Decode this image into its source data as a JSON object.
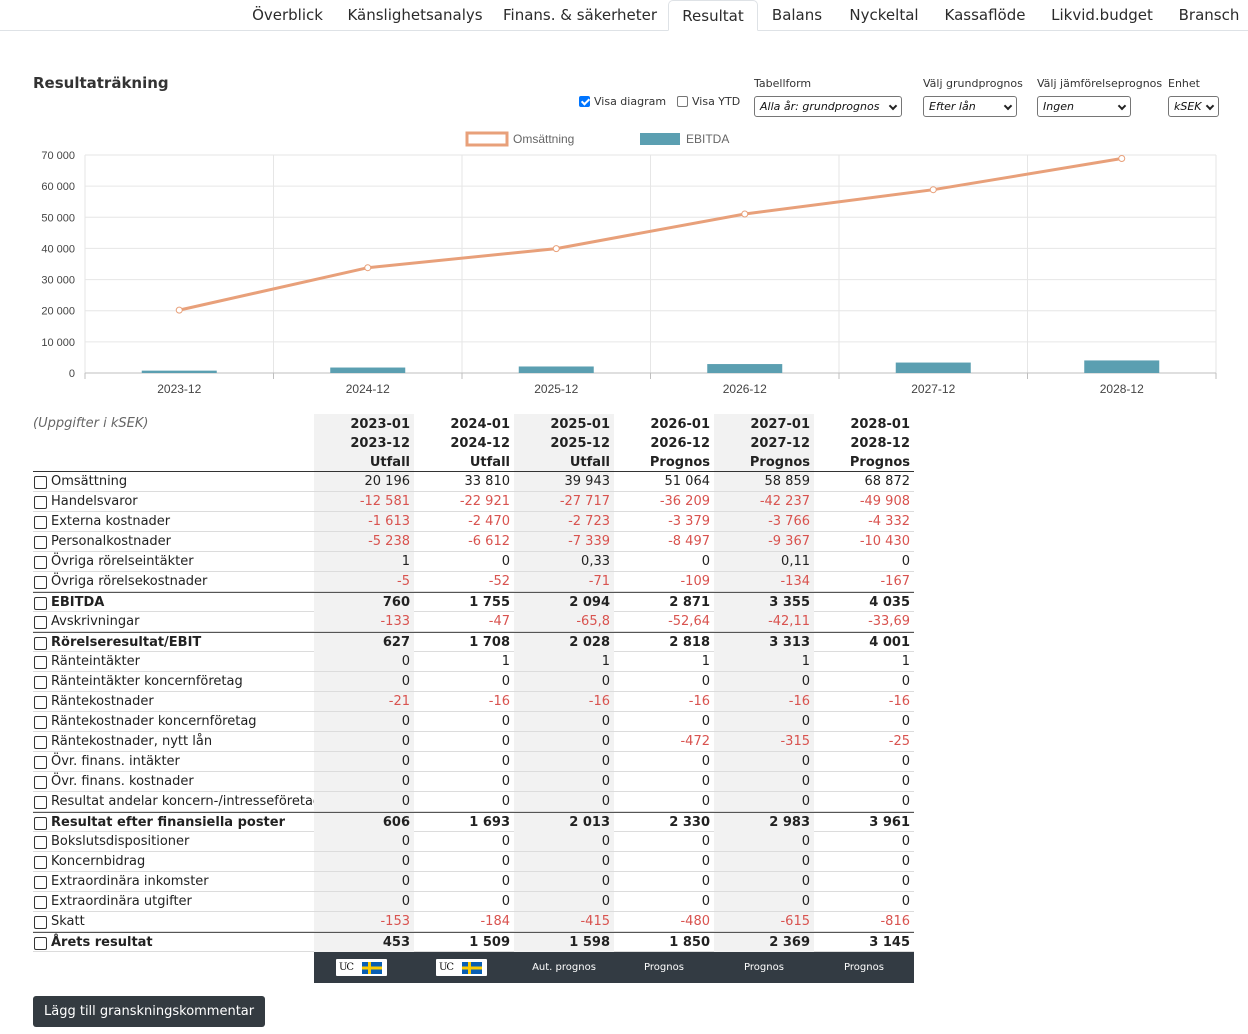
{
  "tabs": [
    {
      "label": "Överblick",
      "active": false
    },
    {
      "label": "Känslighetsanalys",
      "active": false
    },
    {
      "label": "Finans. & säkerheter",
      "active": false
    },
    {
      "label": "Resultat",
      "active": true
    },
    {
      "label": "Balans",
      "active": false
    },
    {
      "label": "Nyckeltal",
      "active": false
    },
    {
      "label": "Kassaflöde",
      "active": false
    },
    {
      "label": "Likvid.budget",
      "active": false
    },
    {
      "label": "Bransch",
      "active": false
    }
  ],
  "page": {
    "title": "Resultaträkning"
  },
  "controls": {
    "show_chart": {
      "label": "Visa diagram",
      "checked": true
    },
    "show_ytd": {
      "label": "Visa YTD",
      "checked": false
    },
    "table_form": {
      "label": "Tabellform",
      "value": "Alla år: grundprognos"
    },
    "base_forecast": {
      "label": "Välj grundprognos",
      "value": "Efter lån"
    },
    "compare_forecast": {
      "label": "Välj jämförelseprognos",
      "value": "Ingen"
    },
    "unit": {
      "label": "Enhet",
      "value": "kSEK"
    }
  },
  "colors": {
    "line": "#e8a07a",
    "bar": "#5b9fb1",
    "negative": "#d9534f",
    "footer": "#333b43"
  },
  "chart_data": {
    "type": "bar+line",
    "categories": [
      "2023-12",
      "2024-12",
      "2025-12",
      "2026-12",
      "2027-12",
      "2028-12"
    ],
    "series": [
      {
        "name": "Omsättning",
        "type": "line",
        "values": [
          20196,
          33810,
          39943,
          51064,
          58859,
          68872
        ]
      },
      {
        "name": "EBITDA",
        "type": "bar",
        "values": [
          760,
          1755,
          2094,
          2871,
          3355,
          4035
        ]
      }
    ],
    "yticks": [
      "0",
      "10 000",
      "20 000",
      "30 000",
      "40 000",
      "50 000",
      "60 000",
      "70 000"
    ],
    "ylim": [
      0,
      70000
    ],
    "grid": true,
    "legend": "top-center"
  },
  "table": {
    "units_note": "(Uppgifter i kSEK)",
    "columns": [
      {
        "start": "2023-01",
        "end": "2023-12",
        "type": "Utfall",
        "footer": "uc"
      },
      {
        "start": "2024-01",
        "end": "2024-12",
        "type": "Utfall",
        "footer": "uc"
      },
      {
        "start": "2025-01",
        "end": "2025-12",
        "type": "Utfall",
        "footer": "Aut. prognos"
      },
      {
        "start": "2026-01",
        "end": "2026-12",
        "type": "Prognos",
        "footer": "Prognos"
      },
      {
        "start": "2027-01",
        "end": "2027-12",
        "type": "Prognos",
        "footer": "Prognos"
      },
      {
        "start": "2028-01",
        "end": "2028-12",
        "type": "Prognos",
        "footer": "Prognos"
      }
    ],
    "uc_logo_text": "UC",
    "rows": [
      {
        "label": "Omsättning",
        "bold": false,
        "values": [
          "20 196",
          "33 810",
          "39 943",
          "51 064",
          "58 859",
          "68 872"
        ]
      },
      {
        "label": "Handelsvaror",
        "bold": false,
        "values": [
          "-12 581",
          "-22 921",
          "-27 717",
          "-36 209",
          "-42 237",
          "-49 908"
        ]
      },
      {
        "label": "Externa kostnader",
        "bold": false,
        "values": [
          "-1 613",
          "-2 470",
          "-2 723",
          "-3 379",
          "-3 766",
          "-4 332"
        ]
      },
      {
        "label": "Personalkostnader",
        "bold": false,
        "values": [
          "-5 238",
          "-6 612",
          "-7 339",
          "-8 497",
          "-9 367",
          "-10 430"
        ]
      },
      {
        "label": "Övriga rörelseintäkter",
        "bold": false,
        "values": [
          "1",
          "0",
          "0,33",
          "0",
          "0,11",
          "0"
        ]
      },
      {
        "label": "Övriga rörelsekostnader",
        "bold": false,
        "values": [
          "-5",
          "-52",
          "-71",
          "-109",
          "-134",
          "-167"
        ]
      },
      {
        "label": "EBITDA",
        "bold": true,
        "values": [
          "760",
          "1 755",
          "2 094",
          "2 871",
          "3 355",
          "4 035"
        ]
      },
      {
        "label": "Avskrivningar",
        "bold": false,
        "values": [
          "-133",
          "-47",
          "-65,8",
          "-52,64",
          "-42,11",
          "-33,69"
        ]
      },
      {
        "label": "Rörelseresultat/EBIT",
        "bold": true,
        "values": [
          "627",
          "1 708",
          "2 028",
          "2 818",
          "3 313",
          "4 001"
        ]
      },
      {
        "label": "Ränteintäkter",
        "bold": false,
        "values": [
          "0",
          "1",
          "1",
          "1",
          "1",
          "1"
        ]
      },
      {
        "label": "Ränteintäkter koncernföretag",
        "bold": false,
        "values": [
          "0",
          "0",
          "0",
          "0",
          "0",
          "0"
        ]
      },
      {
        "label": "Räntekostnader",
        "bold": false,
        "values": [
          "-21",
          "-16",
          "-16",
          "-16",
          "-16",
          "-16"
        ]
      },
      {
        "label": "Räntekostnader koncernföretag",
        "bold": false,
        "values": [
          "0",
          "0",
          "0",
          "0",
          "0",
          "0"
        ]
      },
      {
        "label": "Räntekostnader, nytt lån",
        "bold": false,
        "values": [
          "0",
          "0",
          "0",
          "-472",
          "-315",
          "-25"
        ]
      },
      {
        "label": "Övr. finans. intäkter",
        "bold": false,
        "values": [
          "0",
          "0",
          "0",
          "0",
          "0",
          "0"
        ]
      },
      {
        "label": "Övr. finans. kostnader",
        "bold": false,
        "values": [
          "0",
          "0",
          "0",
          "0",
          "0",
          "0"
        ]
      },
      {
        "label": "Resultat andelar koncern-/intresseföretag",
        "bold": false,
        "values": [
          "0",
          "0",
          "0",
          "0",
          "0",
          "0"
        ]
      },
      {
        "label": "Resultat efter finansiella poster",
        "bold": true,
        "values": [
          "606",
          "1 693",
          "2 013",
          "2 330",
          "2 983",
          "3 961"
        ]
      },
      {
        "label": "Bokslutsdispositioner",
        "bold": false,
        "values": [
          "0",
          "0",
          "0",
          "0",
          "0",
          "0"
        ]
      },
      {
        "label": "Koncernbidrag",
        "bold": false,
        "values": [
          "0",
          "0",
          "0",
          "0",
          "0",
          "0"
        ]
      },
      {
        "label": "Extraordinära inkomster",
        "bold": false,
        "values": [
          "0",
          "0",
          "0",
          "0",
          "0",
          "0"
        ]
      },
      {
        "label": "Extraordinära utgifter",
        "bold": false,
        "values": [
          "0",
          "0",
          "0",
          "0",
          "0",
          "0"
        ]
      },
      {
        "label": "Skatt",
        "bold": false,
        "values": [
          "-153",
          "-184",
          "-415",
          "-480",
          "-615",
          "-816"
        ]
      },
      {
        "label": "Årets resultat",
        "bold": true,
        "values": [
          "453",
          "1 509",
          "1 598",
          "1 850",
          "2 369",
          "3 145"
        ]
      }
    ]
  },
  "actions": {
    "add_comment": "Lägg till granskningskommentar"
  }
}
